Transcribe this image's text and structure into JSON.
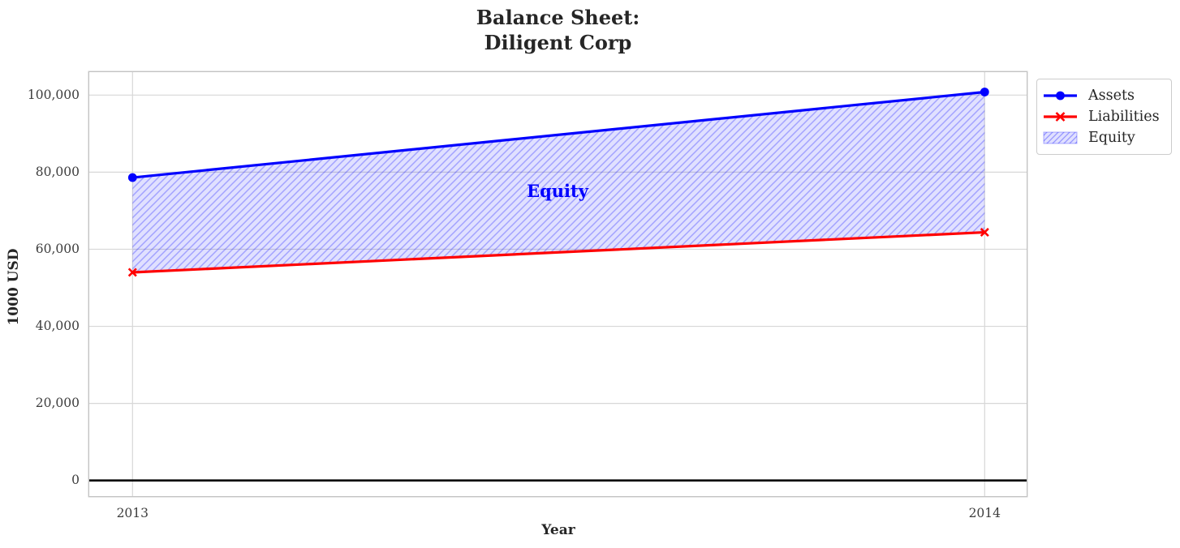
{
  "title_lines": [
    "Balance Sheet:",
    "Diligent Corp"
  ],
  "chart_data": {
    "type": "line",
    "title": "Balance Sheet:\nDiligent Corp",
    "xlabel": "Year",
    "ylabel": "1000 USD",
    "x": [
      2013,
      2014
    ],
    "xtick_labels": [
      "2013",
      "2014"
    ],
    "series": [
      {
        "name": "Assets",
        "values": [
          78600,
          100800
        ],
        "color": "#0000ff",
        "marker": "circle"
      },
      {
        "name": "Liabilities",
        "values": [
          54000,
          64400
        ],
        "color": "#ff0000",
        "marker": "x"
      }
    ],
    "area": {
      "name": "Equity",
      "between": [
        "Assets",
        "Liabilities"
      ],
      "fill": "rgba(0,0,255,0.12)",
      "hatch": "/",
      "hatch_color": "rgba(0,0,255,0.28)",
      "values_derived": [
        24600,
        36400
      ]
    },
    "annotation": {
      "text": "Equity",
      "color": "#0000ff"
    },
    "yticks": [
      0,
      20000,
      40000,
      60000,
      80000,
      100000
    ],
    "ytick_labels": [
      "0",
      "20,000",
      "40,000",
      "60,000",
      "80,000",
      "100,000"
    ],
    "ylim": [
      -4300,
      106200
    ],
    "grid": true,
    "zero_line": true,
    "legend_position": "upper right, outside axes",
    "colors": {
      "grid": "#d7d7d7",
      "spine": "#c3c3c3",
      "zero_line": "#000000",
      "tick_text": "#3d3d3d",
      "title_text": "#262626"
    }
  }
}
